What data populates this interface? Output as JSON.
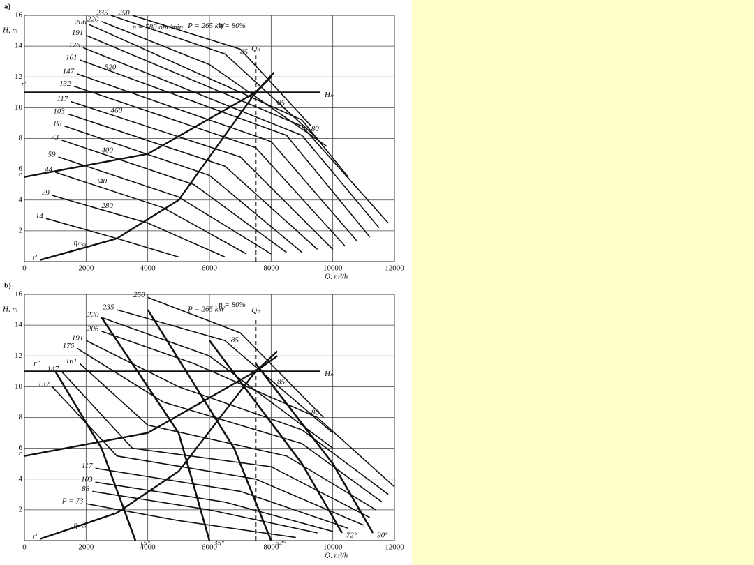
{
  "chart_data": [
    {
      "type": "line",
      "panel": "a)",
      "ylabel": "H, m",
      "xlabel": "Q, m³/h",
      "xlim": [
        0,
        12000
      ],
      "ylim": [
        0,
        16
      ],
      "xticks": [
        0,
        2000,
        4000,
        6000,
        8000,
        10000,
        12000
      ],
      "yticks": [
        2,
        4,
        6,
        8,
        10,
        12,
        14,
        16
      ],
      "grid": true,
      "series": [
        {
          "name": "14",
          "color": "#111",
          "width": 1.6,
          "dash": false,
          "label_at": "start",
          "x": [
            700,
            3000,
            5000
          ],
          "values": [
            2.8,
            1.5,
            0.3
          ]
        },
        {
          "name": "29",
          "color": "#111",
          "width": 1.6,
          "dash": false,
          "label_at": "start",
          "x": [
            900,
            4000,
            6500
          ],
          "values": [
            4.3,
            2.5,
            0.3
          ]
        },
        {
          "name": "44",
          "color": "#111",
          "width": 1.6,
          "dash": false,
          "label_at": "start",
          "x": [
            1000,
            4500,
            7200
          ],
          "values": [
            5.8,
            3.5,
            0.5
          ]
        },
        {
          "name": "59",
          "color": "#111",
          "width": 1.6,
          "dash": false,
          "label_at": "start",
          "x": [
            1100,
            5000,
            8000
          ],
          "values": [
            6.8,
            4.2,
            0.5
          ]
        },
        {
          "name": "73",
          "color": "#111",
          "width": 1.6,
          "dash": false,
          "label_at": "start",
          "x": [
            1200,
            5500,
            8500
          ],
          "values": [
            7.9,
            5,
            0.6
          ]
        },
        {
          "name": "88",
          "color": "#111",
          "width": 1.6,
          "dash": false,
          "label_at": "start",
          "x": [
            1300,
            6000,
            9000
          ],
          "values": [
            8.8,
            5.6,
            0.6
          ]
        },
        {
          "name": "103",
          "color": "#111",
          "width": 1.6,
          "dash": false,
          "label_at": "start",
          "x": [
            1400,
            6500,
            9500
          ],
          "values": [
            9.6,
            6.2,
            0.8
          ]
        },
        {
          "name": "117",
          "color": "#111",
          "width": 1.6,
          "dash": false,
          "label_at": "start",
          "x": [
            1500,
            7000,
            10000
          ],
          "values": [
            10.4,
            6.8,
            0.8
          ]
        },
        {
          "name": "132",
          "color": "#111",
          "width": 1.6,
          "dash": false,
          "label_at": "start",
          "x": [
            1600,
            7500,
            10400
          ],
          "values": [
            11.4,
            7.4,
            1.0
          ]
        },
        {
          "name": "147",
          "color": "#111",
          "width": 1.6,
          "dash": false,
          "label_at": "start",
          "x": [
            1700,
            8000,
            10800
          ],
          "values": [
            12.2,
            7.8,
            1.3
          ]
        },
        {
          "name": "161",
          "color": "#111",
          "width": 1.6,
          "dash": false,
          "label_at": "start",
          "x": [
            1800,
            8500,
            11200
          ],
          "values": [
            13.1,
            8.2,
            1.6
          ]
        },
        {
          "name": "176",
          "color": "#111",
          "width": 1.6,
          "dash": false,
          "label_at": "start",
          "x": [
            1900,
            9000,
            11500
          ],
          "values": [
            13.9,
            8.2,
            2.2
          ]
        },
        {
          "name": "191",
          "color": "#111",
          "width": 1.6,
          "dash": false,
          "label_at": "start",
          "x": [
            2000,
            9000,
            11800
          ],
          "values": [
            14.7,
            8.8,
            2.5
          ]
        },
        {
          "name": "206",
          "color": "#111",
          "width": 1.6,
          "dash": false,
          "label_at": "start",
          "x": [
            2100,
            9000,
            10500
          ],
          "values": [
            15.4,
            9.2,
            5.5
          ]
        },
        {
          "name": "220",
          "color": "#111",
          "width": 1.6,
          "dash": false,
          "label_at": "start",
          "x": [
            2500,
            6000,
            9800
          ],
          "values": [
            15.6,
            12.8,
            7.5
          ]
        },
        {
          "name": "235",
          "color": "#111",
          "width": 1.6,
          "dash": false,
          "label_at": "start",
          "x": [
            2800,
            6500,
            9500
          ],
          "values": [
            16,
            13.5,
            8
          ]
        },
        {
          "name": "250",
          "color": "#111",
          "width": 1.6,
          "dash": false,
          "label_at": "start",
          "x": [
            3500,
            7000,
            9300
          ],
          "values": [
            16,
            13.8,
            8.8
          ]
        },
        {
          "name": "r",
          "color": "#111",
          "width": 2.4,
          "dash": false,
          "label_at": "start",
          "x": [
            0,
            4000,
            7500,
            8000
          ],
          "values": [
            5.5,
            7,
            11,
            12
          ]
        },
        {
          "name": "r′",
          "color": "#111",
          "width": 2.4,
          "dash": false,
          "label_at": "start",
          "x": [
            500,
            3000,
            5000,
            7500,
            8100
          ],
          "values": [
            0.1,
            1.5,
            4,
            11,
            12.3
          ]
        },
        {
          "name": "Hₙ",
          "color": "#111",
          "width": 2,
          "dash": false,
          "label_at": "end",
          "x": [
            0,
            9600
          ],
          "values": [
            11,
            11
          ]
        },
        {
          "name": "Qₙ",
          "color": "#111",
          "width": 2,
          "dash": true,
          "label_at": "end",
          "x": [
            7500,
            7500
          ],
          "values": [
            0,
            13.4
          ]
        }
      ],
      "annotations": [
        {
          "text": "P = 265 kW",
          "x": 5300,
          "y": 15.3
        },
        {
          "text": "η = 80%",
          "x": 6300,
          "y": 15.3
        },
        {
          "text": "n = 580 obr/min",
          "x": 3500,
          "y": 15.2
        },
        {
          "text": "520",
          "x": 2600,
          "y": 12.6
        },
        {
          "text": "460",
          "x": 2800,
          "y": 9.8
        },
        {
          "text": "400",
          "x": 2500,
          "y": 7.2
        },
        {
          "text": "340",
          "x": 2300,
          "y": 5.2
        },
        {
          "text": "280",
          "x": 2500,
          "y": 3.6
        },
        {
          "text": "85",
          "x": 7000,
          "y": 13.6
        },
        {
          "text": "85",
          "x": 8200,
          "y": 10.3
        },
        {
          "text": "80",
          "x": 9300,
          "y": 8.6
        },
        {
          "text": "r″",
          "x": -100,
          "y": 11.5
        },
        {
          "text": "ηₘₐₓ",
          "x": 1600,
          "y": 1.2
        }
      ]
    },
    {
      "type": "line",
      "panel": "b)",
      "ylabel": "H, m",
      "xlabel": "Q, m³/h",
      "xlim": [
        0,
        12000
      ],
      "ylim": [
        0,
        16
      ],
      "xticks": [
        0,
        2000,
        4000,
        6000,
        8000,
        10000,
        12000
      ],
      "yticks": [
        2,
        4,
        6,
        8,
        10,
        12,
        14,
        16
      ],
      "grid": true,
      "series": [
        {
          "name": "P = 73",
          "color": "#111",
          "width": 1.6,
          "dash": false,
          "label_at": "start",
          "x": [
            2000,
            5000,
            8800
          ],
          "values": [
            2.4,
            1.3,
            0.2
          ]
        },
        {
          "name": "88",
          "color": "#111",
          "width": 1.6,
          "dash": false,
          "label_at": "start",
          "x": [
            2200,
            6000,
            9500
          ],
          "values": [
            3.2,
            2,
            0.5
          ]
        },
        {
          "name": "103",
          "color": "#111",
          "width": 1.6,
          "dash": false,
          "label_at": "start",
          "x": [
            2300,
            6500,
            10000
          ],
          "values": [
            3.8,
            2.5,
            0.6
          ]
        },
        {
          "name": "117",
          "color": "#111",
          "width": 1.6,
          "dash": false,
          "label_at": "start",
          "x": [
            2300,
            7000,
            10500
          ],
          "values": [
            4.7,
            3.2,
            0.8
          ]
        },
        {
          "name": "132",
          "color": "#111",
          "width": 1.6,
          "dash": false,
          "label_at": "start",
          "x": [
            900,
            3000,
            7500,
            11000
          ],
          "values": [
            10,
            5.5,
            4,
            1.0
          ]
        },
        {
          "name": "147",
          "color": "#111",
          "width": 1.6,
          "dash": false,
          "label_at": "start",
          "x": [
            1200,
            3500,
            8000,
            11200
          ],
          "values": [
            11,
            6,
            4.8,
            1.5
          ]
        },
        {
          "name": "161",
          "color": "#111",
          "width": 1.6,
          "dash": false,
          "label_at": "start",
          "x": [
            1800,
            4000,
            8500,
            11400
          ],
          "values": [
            11.5,
            7.5,
            5.5,
            2
          ]
        },
        {
          "name": "176",
          "color": "#111",
          "width": 1.6,
          "dash": false,
          "label_at": "start",
          "x": [
            1700,
            4500,
            9000,
            11600
          ],
          "values": [
            12.5,
            9,
            6.3,
            2.5
          ]
        },
        {
          "name": "191",
          "color": "#111",
          "width": 1.6,
          "dash": false,
          "label_at": "start",
          "x": [
            2000,
            5000,
            9000,
            11800
          ],
          "values": [
            13,
            10,
            7.2,
            3
          ]
        },
        {
          "name": "206",
          "color": "#111",
          "width": 1.6,
          "dash": false,
          "label_at": "start",
          "x": [
            2500,
            5500,
            9500,
            12000
          ],
          "values": [
            13.6,
            11.5,
            8,
            3.5
          ]
        },
        {
          "name": "220",
          "color": "#111",
          "width": 1.6,
          "dash": false,
          "label_at": "start",
          "x": [
            2500,
            6000,
            10000
          ],
          "values": [
            14.5,
            12,
            6
          ]
        },
        {
          "name": "235",
          "color": "#111",
          "width": 1.6,
          "dash": false,
          "label_at": "start",
          "x": [
            3000,
            6500,
            10000
          ],
          "values": [
            15,
            13,
            7
          ]
        },
        {
          "name": "250",
          "color": "#111",
          "width": 1.6,
          "dash": false,
          "label_at": "start",
          "x": [
            4000,
            7000,
            9700
          ],
          "values": [
            15.8,
            13.5,
            8
          ]
        },
        {
          "name": "15°",
          "color": "#111",
          "width": 2.6,
          "dash": false,
          "label_at": "end",
          "x": [
            1000,
            2500,
            3600
          ],
          "values": [
            11,
            6,
            0
          ]
        },
        {
          "name": "35°",
          "color": "#111",
          "width": 2.6,
          "dash": false,
          "label_at": "end",
          "x": [
            2500,
            5000,
            6000
          ],
          "values": [
            14.5,
            7,
            0
          ]
        },
        {
          "name": "52°",
          "color": "#111",
          "width": 2.6,
          "dash": false,
          "label_at": "end",
          "x": [
            4000,
            6800,
            8000
          ],
          "values": [
            15,
            6,
            0
          ]
        },
        {
          "name": "72°",
          "color": "#111",
          "width": 2.6,
          "dash": false,
          "label_at": "end",
          "x": [
            6000,
            9000,
            10300
          ],
          "values": [
            13,
            5,
            0.5
          ]
        },
        {
          "name": "90°",
          "color": "#111",
          "width": 2.6,
          "dash": false,
          "label_at": "end",
          "x": [
            7500,
            10000,
            11300
          ],
          "values": [
            11.5,
            5,
            0.5
          ]
        },
        {
          "name": "r",
          "color": "#111",
          "width": 2.4,
          "dash": false,
          "label_at": "start",
          "x": [
            0,
            4000,
            7500,
            8200
          ],
          "values": [
            5.5,
            7,
            11,
            12
          ]
        },
        {
          "name": "r′",
          "color": "#111",
          "width": 2.4,
          "dash": false,
          "label_at": "start",
          "x": [
            500,
            3000,
            5000,
            7500,
            8200
          ],
          "values": [
            0.1,
            1.8,
            4.5,
            11,
            12.3
          ]
        },
        {
          "name": "Hₙ",
          "color": "#111",
          "width": 2,
          "dash": false,
          "label_at": "end",
          "x": [
            0,
            9600
          ],
          "values": [
            11,
            11
          ]
        },
        {
          "name": "Qₙ",
          "color": "#111",
          "width": 2,
          "dash": true,
          "label_at": "end",
          "x": [
            7500,
            7500
          ],
          "values": [
            0,
            14.5
          ]
        }
      ],
      "annotations": [
        {
          "text": "P = 265 kW",
          "x": 5300,
          "y": 15.0
        },
        {
          "text": "η = 80%",
          "x": 6300,
          "y": 15.3
        },
        {
          "text": "85",
          "x": 6700,
          "y": 13.0
        },
        {
          "text": "85",
          "x": 8200,
          "y": 10.3
        },
        {
          "text": "80",
          "x": 9300,
          "y": 8.3
        },
        {
          "text": "r″",
          "x": 300,
          "y": 11.5
        },
        {
          "text": "ηₘₐₓ",
          "x": 1600,
          "y": 1.0
        }
      ]
    }
  ]
}
